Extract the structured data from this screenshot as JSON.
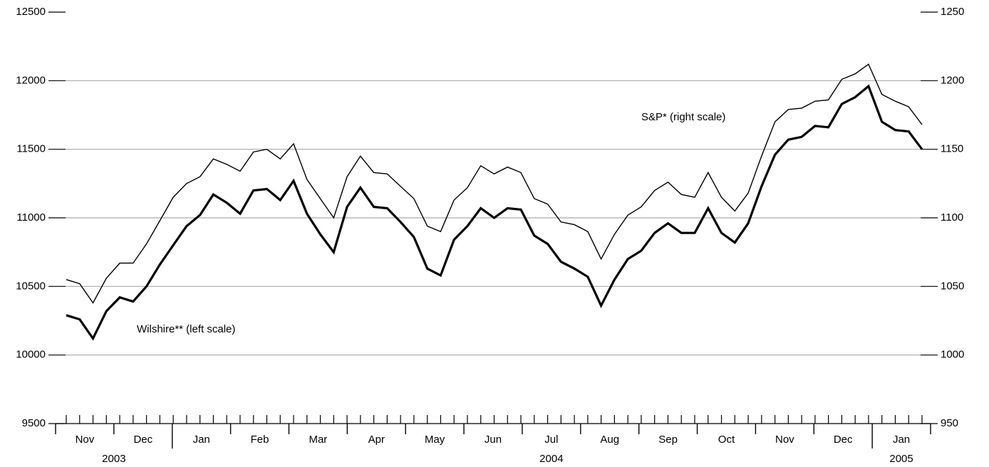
{
  "chart_data": {
    "type": "line",
    "annotations": [
      "S&P* (right scale)",
      "Wilshire** (left scale)"
    ],
    "months": [
      "Nov",
      "Dec",
      "Jan",
      "Feb",
      "Mar",
      "Apr",
      "May",
      "Jun",
      "Jul",
      "Aug",
      "Sep",
      "Oct",
      "Nov",
      "Dec",
      "Jan"
    ],
    "years": [
      "2003",
      "2004",
      "2005"
    ],
    "series": [
      {
        "name": "Wilshire",
        "color": "#000000",
        "axis": "y",
        "width": 3.2,
        "values": [
          10290,
          10260,
          10120,
          10320,
          10420,
          10390,
          10500,
          10660,
          10800,
          10940,
          11020,
          11170,
          11110,
          11030,
          11200,
          11210,
          11130,
          11270,
          11030,
          10880,
          10750,
          11080,
          11220,
          11080,
          11070,
          10970,
          10860,
          10630,
          10580,
          10840,
          10940,
          11070,
          11000,
          11070,
          11060,
          10870,
          10810,
          10680,
          10630,
          10570,
          10360,
          10550,
          10700,
          10760,
          10890,
          10960,
          10890,
          10890,
          11070,
          10890,
          10820,
          10960,
          11230,
          11460,
          11570,
          11590,
          11670,
          11660,
          11830,
          11880,
          11960,
          11700,
          11640,
          11630,
          11500
        ]
      },
      {
        "name": "S&P",
        "color": "#000000",
        "axis": "y2",
        "width": 1.4,
        "values": [
          1055,
          1052,
          1038,
          1056,
          1067,
          1067,
          1081,
          1098,
          1115,
          1125,
          1130,
          1143,
          1139,
          1134,
          1148,
          1150,
          1143,
          1154,
          1128,
          1114,
          1100,
          1130,
          1145,
          1133,
          1132,
          1123,
          1114,
          1094,
          1090,
          1113,
          1122,
          1138,
          1132,
          1137,
          1133,
          1114,
          1110,
          1097,
          1095,
          1090,
          1070,
          1088,
          1102,
          1108,
          1120,
          1126,
          1117,
          1115,
          1133,
          1115,
          1105,
          1118,
          1145,
          1170,
          1179,
          1180,
          1185,
          1186,
          1201,
          1205,
          1212,
          1190,
          1185,
          1181,
          1168
        ]
      }
    ],
    "ylim": [
      9500,
      12500
    ],
    "yticks": [
      9500,
      10000,
      10500,
      11000,
      11500,
      12000,
      12500
    ],
    "y2lim": [
      950,
      1250
    ],
    "y2ticks": [
      950,
      1000,
      1050,
      1100,
      1150,
      1200,
      1250
    ],
    "grid": true
  }
}
